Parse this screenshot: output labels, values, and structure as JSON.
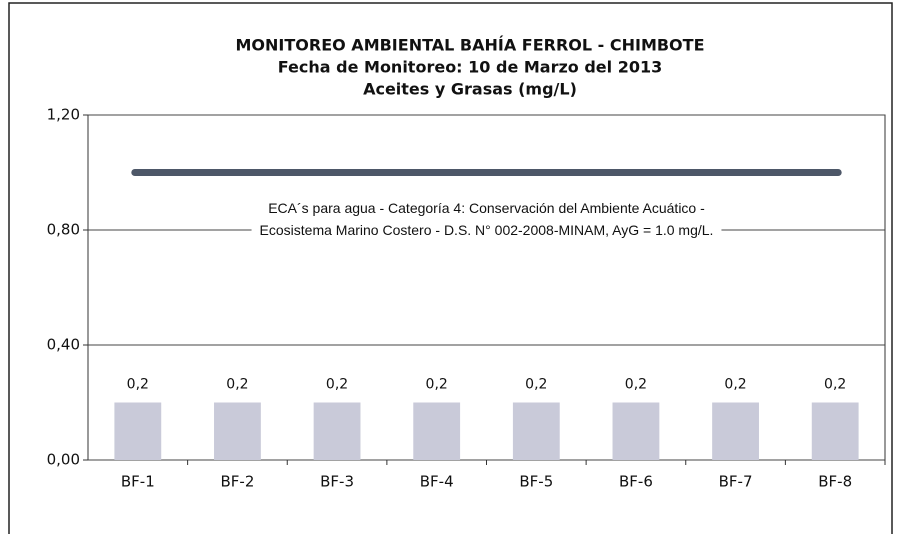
{
  "chart_data": {
    "type": "bar",
    "title": "MONITOREO AMBIENTAL BAHÍA FERROL - CHIMBOTE",
    "subtitle": [
      "Fecha de Monitoreo: 10 de Marzo del 2013",
      "Aceites y Grasas (mg/L)"
    ],
    "categories": [
      "BF-1",
      "BF-2",
      "BF-3",
      "BF-4",
      "BF-5",
      "BF-6",
      "BF-7",
      "BF-8"
    ],
    "values": [
      0.2,
      0.2,
      0.2,
      0.2,
      0.2,
      0.2,
      0.2,
      0.2
    ],
    "value_labels": [
      "0,2",
      "0,2",
      "0,2",
      "0,2",
      "0,2",
      "0,2",
      "0,2",
      "0,2"
    ],
    "color": "#c9cad9",
    "ylim": [
      0,
      1.2
    ],
    "yticks": [
      {
        "value": 0,
        "label": "0,00"
      },
      {
        "value": 0.4,
        "label": "0,40"
      },
      {
        "value": 0.8,
        "label": "0,80"
      },
      {
        "value": 1.2,
        "label": "1,20"
      }
    ],
    "grid": true,
    "reference_line": {
      "value": 1.0,
      "color": "#4d5768",
      "annotation": [
        "ECA´s para agua - Categoría 4: Conservación del Ambiente Acuático -",
        "Ecosistema Marino Costero - D.S. N° 002-2008-MINAM, AyG = 1.0 mg/L."
      ]
    }
  }
}
